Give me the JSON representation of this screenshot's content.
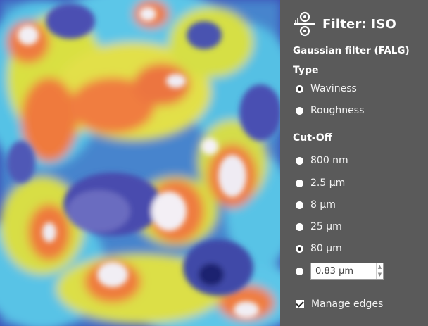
{
  "panel": {
    "title": "Filter: ISO",
    "subtitle": "Gaussian filter (FALG)",
    "type_heading": "Type",
    "type_options": [
      {
        "label": "Waviness",
        "selected": true
      },
      {
        "label": "Roughness",
        "selected": false
      }
    ],
    "cutoff_heading": "Cut-Off",
    "cutoff_options": [
      {
        "label": "800 nm",
        "selected": false
      },
      {
        "label": "2.5 µm",
        "selected": false
      },
      {
        "label": "8 µm",
        "selected": false
      },
      {
        "label": "25 µm",
        "selected": false
      },
      {
        "label": "80 µm",
        "selected": true
      }
    ],
    "custom_cutoff": {
      "value": "0.83 µm",
      "selected": false
    },
    "manage_edges": {
      "label": "Manage edges",
      "checked": true
    }
  },
  "colors": {
    "panel_bg": "#5a5a5a",
    "map_low": "#3a48b8",
    "map_high": "#f1eef6"
  },
  "icons": {
    "title": "filter-icon",
    "spinner_up": "spinner-up-icon",
    "spinner_down": "spinner-down-icon"
  }
}
